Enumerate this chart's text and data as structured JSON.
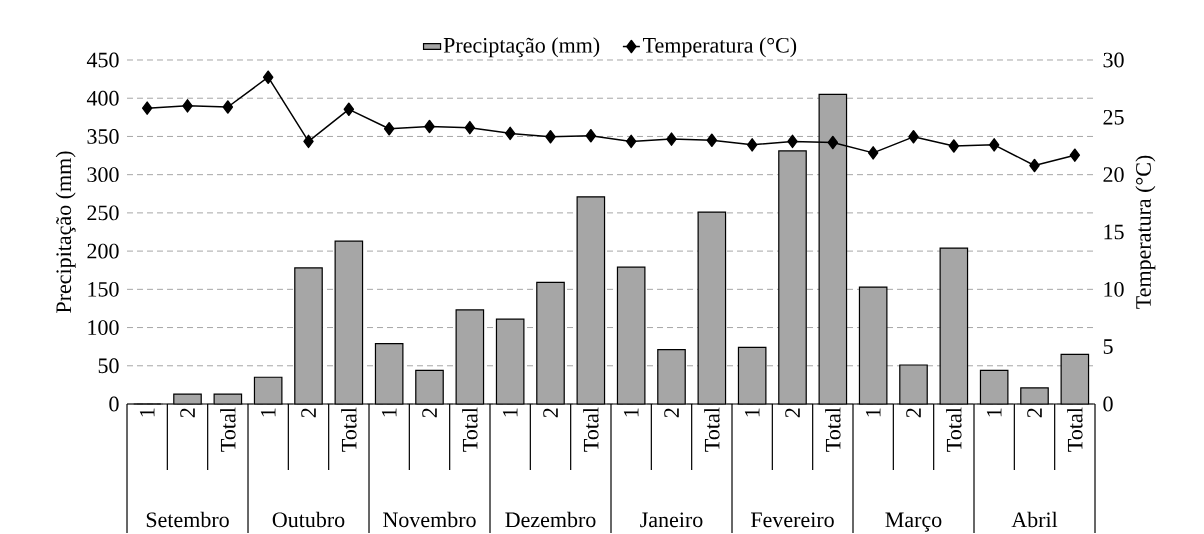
{
  "chart_data": {
    "type": "bar",
    "categories": [
      "1",
      "2",
      "Total",
      "1",
      "2",
      "Total",
      "1",
      "2",
      "Total",
      "1",
      "2",
      "Total",
      "1",
      "2",
      "Total",
      "1",
      "2",
      "Total",
      "1",
      "2",
      "Total",
      "1",
      "2",
      "Total"
    ],
    "series": [
      {
        "name": "Preciptação (mm)",
        "color": "#a6a6a6",
        "values": [
          0,
          13,
          13,
          35,
          178,
          213,
          79,
          44,
          123,
          111,
          159,
          271,
          179,
          71,
          251,
          74,
          331,
          405,
          153,
          51,
          204,
          44,
          21,
          65
        ]
      },
      {
        "name": "Temperatura (°C)",
        "type": "line",
        "axis": "y2",
        "color": "#000000",
        "marker": "diamond",
        "values": [
          25.8,
          26.0,
          25.9,
          28.5,
          22.9,
          25.7,
          24.0,
          24.2,
          24.1,
          23.6,
          23.3,
          23.4,
          22.9,
          23.1,
          23.0,
          22.6,
          22.9,
          22.8,
          21.9,
          23.3,
          22.5,
          22.6,
          20.8,
          21.7
        ]
      }
    ],
    "ylabel": "Precipitação (mm)",
    "y2label": "Temperatura (°C)",
    "ylim": [
      0,
      450
    ],
    "yticks": [
      0,
      50,
      100,
      150,
      200,
      250,
      300,
      350,
      400,
      450
    ],
    "y2lim": [
      0,
      30
    ],
    "y2ticks": [
      0,
      5,
      10,
      15,
      20,
      25,
      30
    ],
    "grid": "y",
    "legend": "top",
    "annotations": [
      "Setembro",
      "Outubro",
      "Novembro",
      "Dezembro",
      "Janeiro",
      "Fevereiro",
      "Março",
      "Abril"
    ]
  }
}
